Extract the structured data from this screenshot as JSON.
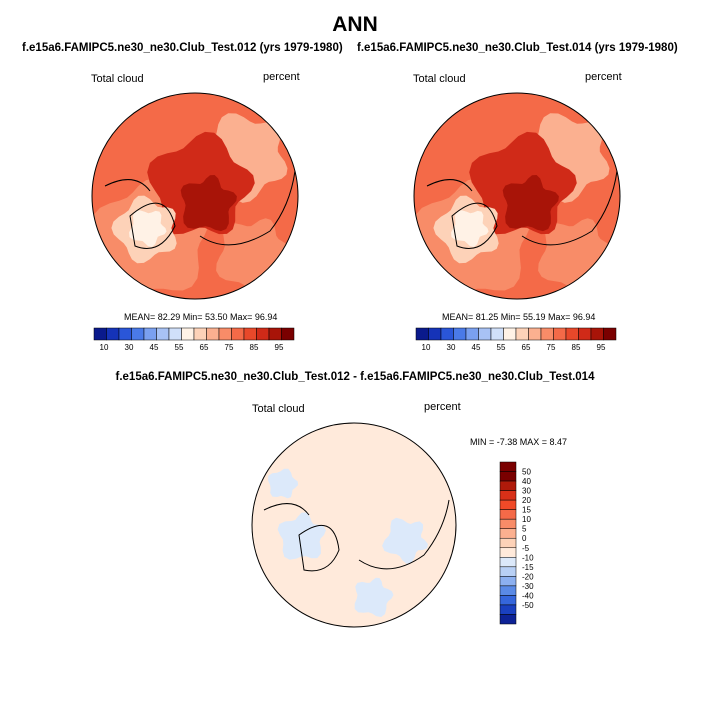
{
  "chart_data": [
    {
      "type": "heatmap",
      "projection": "north-polar-stereographic",
      "title": "f.e15a6.FAMIPC5.ne30_ne30.Club_Test.012 (yrs 1979-1980)",
      "left_label": "Total cloud",
      "right_label": "percent",
      "stats": {
        "mean": "82.29",
        "min": "53.50",
        "max": "96.94"
      },
      "stats_text": "MEAN=  82.29  Min=  53.50  Max=  96.94",
      "colorbar_levels": [
        "10",
        "30",
        "45",
        "55",
        "65",
        "75",
        "85",
        "95"
      ],
      "colorbar_colors": [
        "#0a1a8c",
        "#1533b8",
        "#2a56d8",
        "#4a7ae8",
        "#7aa0f0",
        "#a8c2f5",
        "#d0e0fa",
        "#fff2e6",
        "#fdd2b8",
        "#fbb090",
        "#f88c68",
        "#f46a48",
        "#e8482a",
        "#d02a18",
        "#a81408",
        "#7a0000"
      ]
    },
    {
      "type": "heatmap",
      "projection": "north-polar-stereographic",
      "title": "f.e15a6.FAMIPC5.ne30_ne30.Club_Test.014 (yrs 1979-1980)",
      "left_label": "Total cloud",
      "right_label": "percent",
      "stats": {
        "mean": "81.25",
        "min": "55.19",
        "max": "96.94"
      },
      "stats_text": "MEAN=  81.25  Min=  55.19  Max=  96.94",
      "colorbar_levels": [
        "10",
        "30",
        "45",
        "55",
        "65",
        "75",
        "85",
        "95"
      ],
      "colorbar_colors": [
        "#0a1a8c",
        "#1533b8",
        "#2a56d8",
        "#4a7ae8",
        "#7aa0f0",
        "#a8c2f5",
        "#d0e0fa",
        "#fff2e6",
        "#fdd2b8",
        "#fbb090",
        "#f88c68",
        "#f46a48",
        "#e8482a",
        "#d02a18",
        "#a81408",
        "#7a0000"
      ]
    },
    {
      "type": "heatmap",
      "projection": "north-polar-stereographic",
      "title": "f.e15a6.FAMIPC5.ne30_ne30.Club_Test.012 - f.e15a6.FAMIPC5.ne30_ne30.Club_Test.014",
      "left_label": "Total cloud",
      "right_label": "percent",
      "stats": {
        "min": "-7.38",
        "max": "8.47"
      },
      "stats_text": "MIN =  -7.38 MAX =   8.47",
      "colorbar_levels": [
        "50",
        "40",
        "30",
        "20",
        "15",
        "10",
        "5",
        "0",
        "-5",
        "-10",
        "-15",
        "-20",
        "-30",
        "-40",
        "-50"
      ],
      "colorbar_colors": [
        "#7a0000",
        "#b01a0a",
        "#d83018",
        "#f04a28",
        "#f46a48",
        "#f88c68",
        "#fbb090",
        "#fdd2b8",
        "#ffeadb",
        "#dce9fa",
        "#b8d0f5",
        "#8cb0f0",
        "#5a8ae6",
        "#3566dc",
        "#1a40c0",
        "#0d2296"
      ]
    }
  ],
  "figure": {
    "title": "ANN"
  }
}
